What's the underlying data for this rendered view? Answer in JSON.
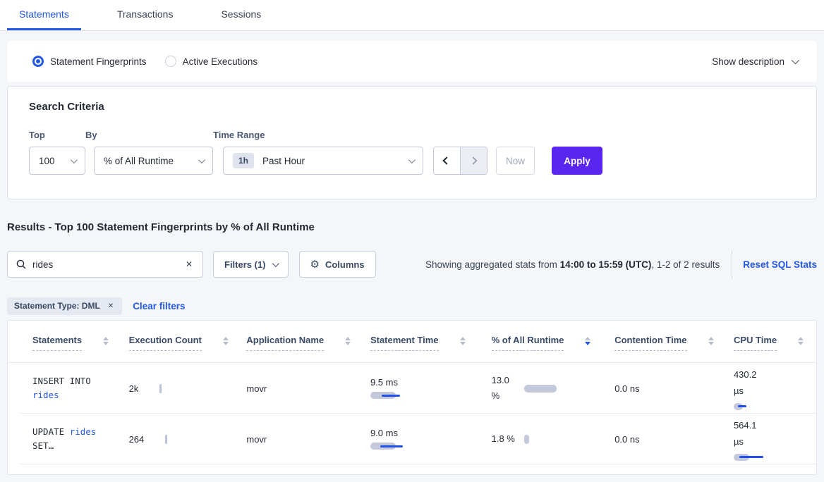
{
  "colors": {
    "accent_blue": "#2458e4",
    "primary_purple": "#5b25f0",
    "bar_grey": "#c3c9da"
  },
  "tabs": {
    "items": [
      {
        "label": "Statements",
        "active": true
      },
      {
        "label": "Transactions",
        "active": false
      },
      {
        "label": "Sessions",
        "active": false
      }
    ]
  },
  "view_toggle": {
    "options": [
      {
        "label": "Statement Fingerprints",
        "selected": true
      },
      {
        "label": "Active Executions",
        "selected": false
      }
    ],
    "show_description_label": "Show description"
  },
  "search_criteria": {
    "title": "Search Criteria",
    "top": {
      "label": "Top",
      "value": "100"
    },
    "by": {
      "label": "By",
      "value": "% of All Runtime"
    },
    "time_range": {
      "label": "Time Range",
      "badge": "1h",
      "value": "Past Hour"
    },
    "now_label": "Now",
    "apply_label": "Apply"
  },
  "results": {
    "heading": "Results - Top 100 Statement Fingerprints by % of All Runtime",
    "search": {
      "value": "rides",
      "icon": "search-icon",
      "clear_icon": "close-icon"
    },
    "filters_label": "Filters (1)",
    "columns_label": "Columns",
    "columns_icon": "gear-icon",
    "showing_prefix": "Showing aggregated stats from ",
    "showing_range": "14:00 to 15:59 (UTC)",
    "showing_suffix": ", 1-2 of 2 results",
    "reset_label": "Reset SQL Stats",
    "filter_chip": {
      "label": "Statement Type: DML",
      "close_icon": "close-icon"
    },
    "clear_filters_label": "Clear filters"
  },
  "table": {
    "columns": [
      {
        "label": "Statements",
        "sort": "none"
      },
      {
        "label": "Execution Count",
        "sort": "none"
      },
      {
        "label": "Application Name",
        "sort": "none"
      },
      {
        "label": "Statement Time",
        "sort": "none"
      },
      {
        "label": "% of All Runtime",
        "sort": "desc"
      },
      {
        "label": "Contention Time",
        "sort": "none"
      },
      {
        "label": "CPU Time",
        "sort": "none"
      }
    ],
    "rows": [
      {
        "statement": [
          {
            "text": "INSERT INTO ",
            "link": false
          },
          {
            "text": "rides",
            "link": true
          }
        ],
        "execution_count": "2k",
        "application_name": "movr",
        "statement_time": {
          "value": "9.5 ms",
          "bar": {
            "grey_w": 36,
            "blue_l": 16,
            "blue_w": 26
          }
        },
        "pct_runtime": {
          "value": "13.0 %",
          "bar": {
            "w": 46,
            "h": 11
          }
        },
        "contention_time": "0.0 ns",
        "cpu_time": {
          "value": "430.2 µs",
          "bar": {
            "grey_w": 13,
            "blue_l": 6,
            "blue_w": 12
          }
        }
      },
      {
        "statement": [
          {
            "text": "UPDATE ",
            "link": false
          },
          {
            "text": "rides",
            "link": true
          },
          {
            "text": " SET…",
            "link": false
          }
        ],
        "execution_count": "264",
        "application_name": "movr",
        "statement_time": {
          "value": "9.0 ms",
          "bar": {
            "grey_w": 36,
            "blue_l": 14,
            "blue_w": 32
          }
        },
        "pct_runtime": {
          "value": "1.8 %",
          "bar": {
            "w": 7,
            "h": 13
          }
        },
        "contention_time": "0.0 ns",
        "cpu_time": {
          "value": "564.1 µs",
          "bar": {
            "grey_w": 22,
            "blue_l": 8,
            "blue_w": 34
          }
        }
      }
    ]
  }
}
